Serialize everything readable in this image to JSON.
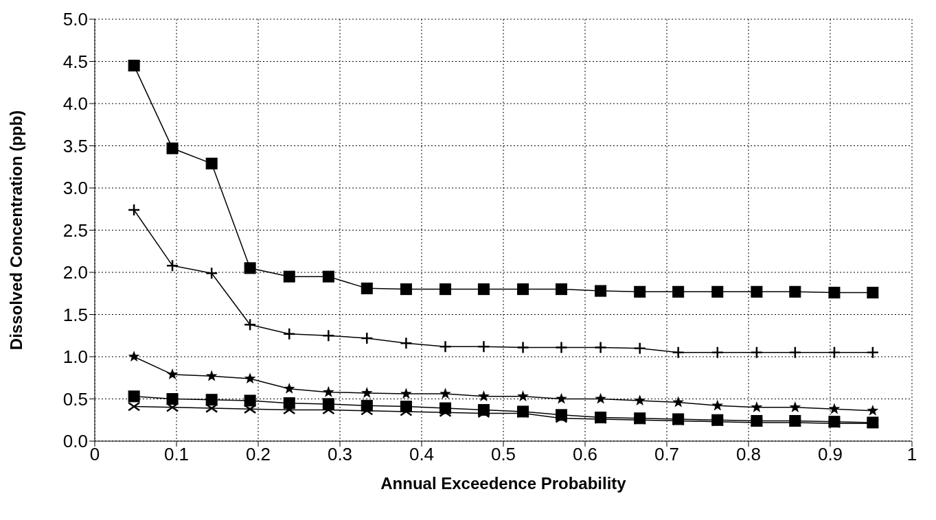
{
  "chart_data": {
    "type": "line",
    "xlabel": "Annual Exceedence Probability",
    "ylabel": "Dissolved Concentration (ppb)",
    "x": [
      0.048,
      0.095,
      0.143,
      0.19,
      0.238,
      0.286,
      0.333,
      0.381,
      0.429,
      0.476,
      0.524,
      0.571,
      0.619,
      0.667,
      0.714,
      0.762,
      0.81,
      0.857,
      0.905,
      0.952
    ],
    "series": [
      {
        "color": "#000000",
        "marker": "square",
        "values": [
          4.45,
          3.47,
          3.29,
          2.05,
          1.95,
          1.95,
          1.81,
          1.8,
          1.8,
          1.8,
          1.8,
          1.8,
          1.78,
          1.77,
          1.77,
          1.77,
          1.77,
          1.77,
          1.76,
          1.76
        ]
      },
      {
        "color": "#000000",
        "marker": "plus",
        "values": [
          2.74,
          2.08,
          1.99,
          1.38,
          1.27,
          1.25,
          1.22,
          1.16,
          1.12,
          1.12,
          1.11,
          1.11,
          1.11,
          1.1,
          1.05,
          1.05,
          1.05,
          1.05,
          1.05,
          1.05
        ]
      },
      {
        "color": "#000000",
        "marker": "star",
        "values": [
          1.0,
          0.79,
          0.77,
          0.74,
          0.62,
          0.58,
          0.57,
          0.56,
          0.56,
          0.53,
          0.53,
          0.5,
          0.5,
          0.48,
          0.46,
          0.42,
          0.4,
          0.4,
          0.38,
          0.36
        ]
      },
      {
        "color": "#000000",
        "marker": "square",
        "values": [
          0.53,
          0.5,
          0.49,
          0.48,
          0.45,
          0.44,
          0.42,
          0.41,
          0.39,
          0.37,
          0.35,
          0.31,
          0.28,
          0.27,
          0.26,
          0.25,
          0.24,
          0.24,
          0.23,
          0.22
        ]
      },
      {
        "color": "#000000",
        "marker": "cross",
        "values": [
          0.41,
          0.4,
          0.39,
          0.38,
          0.37,
          0.37,
          0.36,
          0.35,
          0.34,
          0.33,
          0.33,
          0.27,
          0.26,
          0.25,
          0.24,
          0.23,
          0.22,
          0.22,
          0.21,
          0.21
        ]
      }
    ],
    "xlim": [
      0,
      1
    ],
    "xticks": [
      0,
      0.1,
      0.2,
      0.3,
      0.4,
      0.5,
      0.6,
      0.7,
      0.8,
      0.9,
      1
    ],
    "ylim": [
      0,
      5
    ],
    "yticks": [
      {
        "value": 0,
        "label": "0.0"
      },
      {
        "value": 0.5,
        "label": "0.5"
      },
      {
        "value": 1,
        "label": "1.0"
      },
      {
        "value": 1.5,
        "label": "1.5"
      },
      {
        "value": 2,
        "label": "2.0"
      },
      {
        "value": 2.5,
        "label": "2.5"
      },
      {
        "value": 3,
        "label": "3.0"
      },
      {
        "value": 3.5,
        "label": "3.5"
      },
      {
        "value": 4,
        "label": "4.0"
      },
      {
        "value": 4.5,
        "label": "4.5"
      },
      {
        "value": 5,
        "label": "5.0"
      }
    ],
    "grid": true,
    "line_style": "solid"
  }
}
